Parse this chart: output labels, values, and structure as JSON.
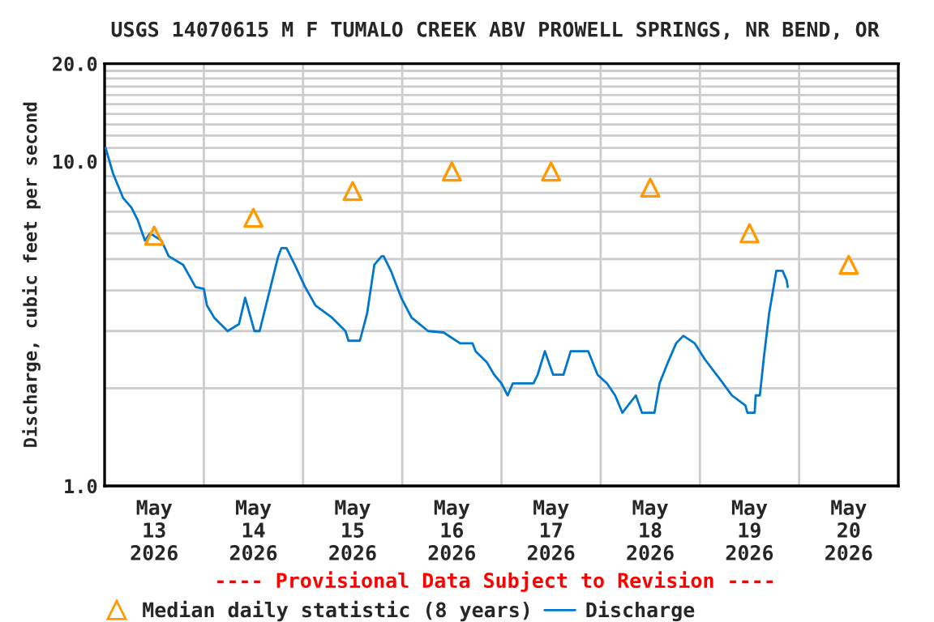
{
  "chart_data": {
    "type": "line",
    "title": "USGS 14070615 M F TUMALO CREEK ABV PROWELL SPRINGS, NR BEND, OR",
    "ylabel": "Discharge, cubic feet per second",
    "log": "y",
    "grid": true,
    "legend": "bottom",
    "marker": "none",
    "xlim": [
      "2026-05-13T00:00",
      "2026-05-21T00:00"
    ],
    "xticks": [
      {
        "value": "2026-05-14T00:00",
        "label": null
      },
      {
        "value": "2026-05-15T00:00",
        "label": null
      },
      {
        "value": "2026-05-16T00:00",
        "label": null
      },
      {
        "value": "2026-05-17T00:00",
        "label": null
      },
      {
        "value": "2026-05-18T00:00",
        "label": null
      },
      {
        "value": "2026-05-19T00:00",
        "label": null
      },
      {
        "value": "2026-05-20T00:00",
        "label": null
      },
      {
        "value": "2026-05-13T12:00",
        "label": "May\n13\n2026"
      },
      {
        "value": "2026-05-14T12:00",
        "label": "May\n14\n2026"
      },
      {
        "value": "2026-05-15T12:00",
        "label": "May\n15\n2026"
      },
      {
        "value": "2026-05-16T12:00",
        "label": "May\n16\n2026"
      },
      {
        "value": "2026-05-17T12:00",
        "label": "May\n17\n2026"
      },
      {
        "value": "2026-05-18T12:00",
        "label": "May\n18\n2026"
      },
      {
        "value": "2026-05-19T12:00",
        "label": "May\n19\n2026"
      },
      {
        "value": "2026-05-20T12:00",
        "label": "May\n20\n2026"
      }
    ],
    "ylim": [
      1,
      20
    ],
    "yticks": [
      {
        "value": 1,
        "label": "1.0"
      },
      {
        "value": 2,
        "label": null
      },
      {
        "value": 3,
        "label": null
      },
      {
        "value": 4,
        "label": null
      },
      {
        "value": 5,
        "label": null
      },
      {
        "value": 6,
        "label": null
      },
      {
        "value": 7,
        "label": null
      },
      {
        "value": 8,
        "label": null
      },
      {
        "value": 9,
        "label": null
      },
      {
        "value": 10,
        "label": "10.0"
      },
      {
        "value": 11,
        "label": null
      },
      {
        "value": 12,
        "label": null
      },
      {
        "value": 13,
        "label": null
      },
      {
        "value": 14,
        "label": null
      },
      {
        "value": 15,
        "label": null
      },
      {
        "value": 16,
        "label": null
      },
      {
        "value": 17,
        "label": null
      },
      {
        "value": 18,
        "label": null
      },
      {
        "value": 19,
        "label": null
      },
      {
        "value": 20,
        "label": "20.0"
      }
    ],
    "annotations": [
      "---- Provisional Data Subject to Revision ----"
    ],
    "series": [
      {
        "name": "Median daily statistic (8 years)",
        "type": "scatter",
        "marker": "triangle",
        "color": "#ff9900",
        "x": [
          "2026-05-13T12:00",
          "2026-05-14T12:00",
          "2026-05-15T12:00",
          "2026-05-16T12:00",
          "2026-05-17T12:00",
          "2026-05-18T12:00",
          "2026-05-19T12:00",
          "2026-05-20T12:00"
        ],
        "values": [
          5.9,
          6.7,
          8.1,
          9.3,
          9.3,
          8.3,
          6.0,
          4.8
        ]
      },
      {
        "name": "Discharge",
        "color": "#0077cc",
        "x": [
          "2026-05-13T00:15",
          "2026-05-13T02:00",
          "2026-05-13T04:30",
          "2026-05-13T06:30",
          "2026-05-13T08:00",
          "2026-05-13T09:45",
          "2026-05-13T11:00",
          "2026-05-13T13:45",
          "2026-05-13T15:30",
          "2026-05-13T19:00",
          "2026-05-13T22:00",
          "2026-05-14T00:00",
          "2026-05-14T00:45",
          "2026-05-14T02:30",
          "2026-05-14T05:45",
          "2026-05-14T08:30",
          "2026-05-14T10:00",
          "2026-05-14T12:15",
          "2026-05-14T13:30",
          "2026-05-14T15:30",
          "2026-05-14T18:00",
          "2026-05-14T18:45",
          "2026-05-14T20:00",
          "2026-05-14T22:00",
          "2026-05-15T00:30",
          "2026-05-15T03:00",
          "2026-05-15T07:00",
          "2026-05-15T10:15",
          "2026-05-15T11:00",
          "2026-05-15T13:45",
          "2026-05-15T15:30",
          "2026-05-15T17:15",
          "2026-05-15T19:00",
          "2026-05-15T19:30",
          "2026-05-15T21:15",
          "2026-05-15T23:45",
          "2026-05-16T02:15",
          "2026-05-16T06:15",
          "2026-05-16T10:00",
          "2026-05-16T14:00",
          "2026-05-16T17:00",
          "2026-05-16T17:45",
          "2026-05-16T20:30",
          "2026-05-16T22:15",
          "2026-05-17T00:00",
          "2026-05-17T01:30",
          "2026-05-17T02:45",
          "2026-05-17T07:45",
          "2026-05-17T08:45",
          "2026-05-17T10:30",
          "2026-05-17T12:30",
          "2026-05-17T15:00",
          "2026-05-17T16:45",
          "2026-05-17T21:00",
          "2026-05-17T23:15",
          "2026-05-18T01:30",
          "2026-05-18T03:30",
          "2026-05-18T05:15",
          "2026-05-18T08:30",
          "2026-05-18T10:00",
          "2026-05-18T13:00",
          "2026-05-18T14:15",
          "2026-05-18T16:15",
          "2026-05-18T18:15",
          "2026-05-18T20:00",
          "2026-05-18T22:45",
          "2026-05-19T01:15",
          "2026-05-19T05:15",
          "2026-05-19T07:45",
          "2026-05-19T11:00",
          "2026-05-19T11:30",
          "2026-05-19T13:15",
          "2026-05-19T13:30",
          "2026-05-19T14:30",
          "2026-05-19T15:30",
          "2026-05-19T16:45",
          "2026-05-19T18:30",
          "2026-05-19T20:00",
          "2026-05-19T21:00",
          "2026-05-19T21:15"
        ],
        "values": [
          11.0,
          9.2,
          7.7,
          7.2,
          6.6,
          5.7,
          6.0,
          5.7,
          5.1,
          4.8,
          4.1,
          4.05,
          3.6,
          3.3,
          3.0,
          3.15,
          3.8,
          3.0,
          3.0,
          3.8,
          5.1,
          5.4,
          5.4,
          4.8,
          4.1,
          3.6,
          3.3,
          3.0,
          2.8,
          2.8,
          3.4,
          4.8,
          5.1,
          5.1,
          4.6,
          3.8,
          3.3,
          3.0,
          2.97,
          2.75,
          2.75,
          2.6,
          2.4,
          2.2,
          2.07,
          1.9,
          2.07,
          2.07,
          2.2,
          2.6,
          2.2,
          2.2,
          2.6,
          2.6,
          2.2,
          2.07,
          1.9,
          1.68,
          1.9,
          1.68,
          1.68,
          2.07,
          2.4,
          2.75,
          2.9,
          2.75,
          2.45,
          2.1,
          1.9,
          1.77,
          1.68,
          1.68,
          1.9,
          1.9,
          2.5,
          3.4,
          4.6,
          4.6,
          4.3,
          4.1
        ]
      }
    ]
  }
}
